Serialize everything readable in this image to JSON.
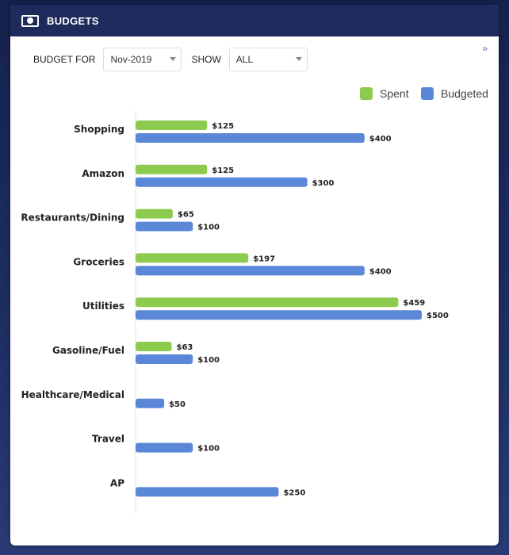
{
  "header": {
    "title": "BUDGETS",
    "icon": "money-bill-icon"
  },
  "controls": {
    "budget_for_label": "BUDGET FOR",
    "budget_for_value": "Nov-2019",
    "show_label": "SHOW",
    "show_value": "ALL",
    "expand_glyph": "»"
  },
  "colors": {
    "spent": "#8dcb4f",
    "budgeted": "#5b87d8",
    "header": "#1e2a5c"
  },
  "chart_data": {
    "type": "bar",
    "orientation": "horizontal",
    "legend_position": "top-right",
    "categories": [
      "Shopping",
      "Amazon",
      "Restaurants/Dining",
      "Groceries",
      "Utilities",
      "Gasoline/Fuel",
      "Healthcare/Medical",
      "Travel",
      "AP"
    ],
    "series": [
      {
        "name": "Spent",
        "values": [
          125,
          125,
          65,
          197,
          459,
          63,
          null,
          null,
          null
        ],
        "labels": [
          "$125",
          "$125",
          "$65",
          "$197",
          "$459",
          "$63",
          "",
          "",
          ""
        ]
      },
      {
        "name": "Budgeted",
        "values": [
          400,
          300,
          100,
          400,
          500,
          100,
          50,
          100,
          250
        ],
        "labels": [
          "$400",
          "$300",
          "$100",
          "$400",
          "$500",
          "$100",
          "$50",
          "$100",
          "$250"
        ]
      }
    ],
    "xlim": [
      0,
      500
    ]
  }
}
